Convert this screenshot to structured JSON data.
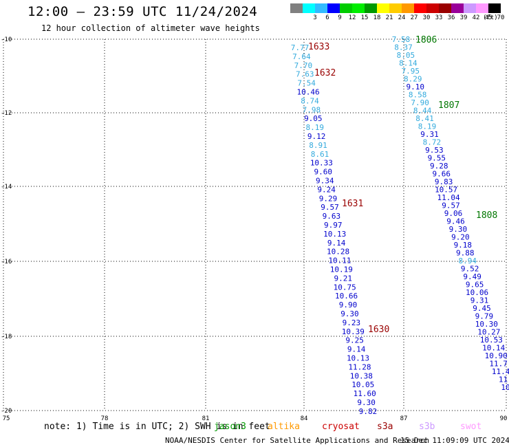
{
  "header": {
    "title": "12:00 — 23:59 UTC 11/24/2024",
    "subtitle": "12 hour collection of altimeter wave heights"
  },
  "legend": {
    "unit": "(ft)",
    "bins": [
      {
        "label": "",
        "color": "#808080"
      },
      {
        "label": "3",
        "color": "#00ffff"
      },
      {
        "label": "6",
        "color": "#33bbff"
      },
      {
        "label": "9",
        "color": "#0000ff"
      },
      {
        "label": "12",
        "color": "#00cc00"
      },
      {
        "label": "15",
        "color": "#00ee00"
      },
      {
        "label": "18",
        "color": "#009900"
      },
      {
        "label": "21",
        "color": "#ffff00"
      },
      {
        "label": "24",
        "color": "#ffcc00"
      },
      {
        "label": "27",
        "color": "#ff9900"
      },
      {
        "label": "30",
        "color": "#ff0000"
      },
      {
        "label": "33",
        "color": "#cc0000"
      },
      {
        "label": "36",
        "color": "#990000"
      },
      {
        "label": "39",
        "color": "#990099"
      },
      {
        "label": "42",
        "color": "#cc99ff"
      },
      {
        "label": "45",
        "color": "#ff99ff"
      },
      {
        "label": "70",
        "color": "#000000"
      }
    ]
  },
  "map": {
    "lon_ticks": [
      "75",
      "78",
      "81",
      "84",
      "87",
      "90"
    ],
    "lat_ticks": [
      "-10",
      "-12",
      "-14",
      "-16",
      "-18",
      "-20"
    ]
  },
  "tracks": [
    {
      "time_labels": [
        {
          "text": "1633",
          "color": "#990000"
        },
        {
          "text": "1632",
          "color": "#990000"
        },
        {
          "text": "1631",
          "color": "#990000"
        },
        {
          "text": "1630",
          "color": "#990000"
        }
      ],
      "values": [
        {
          "text": "7.77",
          "color": "#33aadd"
        },
        {
          "text": "7.64",
          "color": "#33aadd"
        },
        {
          "text": "7.70",
          "color": "#33aadd"
        },
        {
          "text": "7.63",
          "color": "#33aadd"
        },
        {
          "text": "7.54",
          "color": "#33aadd"
        },
        {
          "text": "10.46",
          "color": "#0000cc"
        },
        {
          "text": "8.74",
          "color": "#33aadd"
        },
        {
          "text": "7.98",
          "color": "#33aadd"
        },
        {
          "text": "9.05",
          "color": "#0000cc"
        },
        {
          "text": "8.19",
          "color": "#33aadd"
        },
        {
          "text": "9.12",
          "color": "#0000cc"
        },
        {
          "text": "8.91",
          "color": "#33aadd"
        },
        {
          "text": "8.61",
          "color": "#33aadd"
        },
        {
          "text": "10.33",
          "color": "#0000cc"
        },
        {
          "text": "9.60",
          "color": "#0000cc"
        },
        {
          "text": "9.34",
          "color": "#0000cc"
        },
        {
          "text": "9.24",
          "color": "#0000cc"
        },
        {
          "text": "9.29",
          "color": "#0000cc"
        },
        {
          "text": "9.57",
          "color": "#0000cc"
        },
        {
          "text": "9.63",
          "color": "#0000cc"
        },
        {
          "text": "9.97",
          "color": "#0000cc"
        },
        {
          "text": "10.13",
          "color": "#0000cc"
        },
        {
          "text": "9.14",
          "color": "#0000cc"
        },
        {
          "text": "10.28",
          "color": "#0000cc"
        },
        {
          "text": "10.11",
          "color": "#0000cc"
        },
        {
          "text": "10.19",
          "color": "#0000cc"
        },
        {
          "text": "9.21",
          "color": "#0000cc"
        },
        {
          "text": "10.75",
          "color": "#0000cc"
        },
        {
          "text": "10.66",
          "color": "#0000cc"
        },
        {
          "text": "9.90",
          "color": "#0000cc"
        },
        {
          "text": "9.30",
          "color": "#0000cc"
        },
        {
          "text": "9.23",
          "color": "#0000cc"
        },
        {
          "text": "10.39",
          "color": "#0000cc"
        },
        {
          "text": "9.25",
          "color": "#0000cc"
        },
        {
          "text": "9.14",
          "color": "#0000cc"
        },
        {
          "text": "10.13",
          "color": "#0000cc"
        },
        {
          "text": "11.28",
          "color": "#0000cc"
        },
        {
          "text": "10.38",
          "color": "#0000cc"
        },
        {
          "text": "10.05",
          "color": "#0000cc"
        },
        {
          "text": "11.60",
          "color": "#0000cc"
        },
        {
          "text": "9.30",
          "color": "#0000cc"
        },
        {
          "text": "9.82",
          "color": "#0000cc"
        }
      ]
    },
    {
      "time_labels": [
        {
          "text": "1806",
          "color": "#007700"
        },
        {
          "text": "1807",
          "color": "#007700"
        },
        {
          "text": "1808",
          "color": "#007700"
        }
      ],
      "values": [
        {
          "text": "7.58",
          "color": "#33aadd"
        },
        {
          "text": "8.37",
          "color": "#33aadd"
        },
        {
          "text": "8.05",
          "color": "#33aadd"
        },
        {
          "text": "8.14",
          "color": "#33aadd"
        },
        {
          "text": "7.95",
          "color": "#33aadd"
        },
        {
          "text": "8.29",
          "color": "#33aadd"
        },
        {
          "text": "9.10",
          "color": "#0000cc"
        },
        {
          "text": "8.58",
          "color": "#33aadd"
        },
        {
          "text": "7.90",
          "color": "#33aadd"
        },
        {
          "text": "8.44",
          "color": "#33aadd"
        },
        {
          "text": "8.41",
          "color": "#33aadd"
        },
        {
          "text": "8.19",
          "color": "#33aadd"
        },
        {
          "text": "9.31",
          "color": "#0000cc"
        },
        {
          "text": "8.72",
          "color": "#33aadd"
        },
        {
          "text": "9.53",
          "color": "#0000cc"
        },
        {
          "text": "9.55",
          "color": "#0000cc"
        },
        {
          "text": "9.28",
          "color": "#0000cc"
        },
        {
          "text": "9.66",
          "color": "#0000cc"
        },
        {
          "text": "9.83",
          "color": "#0000cc"
        },
        {
          "text": "10.57",
          "color": "#0000cc"
        },
        {
          "text": "11.04",
          "color": "#0000cc"
        },
        {
          "text": "9.57",
          "color": "#0000cc"
        },
        {
          "text": "9.06",
          "color": "#0000cc"
        },
        {
          "text": "9.46",
          "color": "#0000cc"
        },
        {
          "text": "9.30",
          "color": "#0000cc"
        },
        {
          "text": "9.20",
          "color": "#0000cc"
        },
        {
          "text": "9.18",
          "color": "#0000cc"
        },
        {
          "text": "9.88",
          "color": "#0000cc"
        },
        {
          "text": "8.94",
          "color": "#33aadd"
        },
        {
          "text": "9.52",
          "color": "#0000cc"
        },
        {
          "text": "9.49",
          "color": "#0000cc"
        },
        {
          "text": "9.65",
          "color": "#0000cc"
        },
        {
          "text": "10.06",
          "color": "#0000cc"
        },
        {
          "text": "9.31",
          "color": "#0000cc"
        },
        {
          "text": "9.45",
          "color": "#0000cc"
        },
        {
          "text": "9.79",
          "color": "#0000cc"
        },
        {
          "text": "10.30",
          "color": "#0000cc"
        },
        {
          "text": "10.27",
          "color": "#0000cc"
        },
        {
          "text": "10.53",
          "color": "#0000cc"
        },
        {
          "text": "10.14",
          "color": "#0000cc"
        },
        {
          "text": "10.90",
          "color": "#0000cc"
        },
        {
          "text": "11.7",
          "color": "#0000cc"
        },
        {
          "text": "11.4",
          "color": "#0000cc"
        },
        {
          "text": "11",
          "color": "#0000cc"
        },
        {
          "text": "10",
          "color": "#0000cc"
        }
      ]
    }
  ],
  "footer": {
    "note": "note: 1) Time is in UTC; 2) SWH is in feet",
    "satellites": [
      {
        "name": "jason3",
        "color": "#009900"
      },
      {
        "name": "altika",
        "color": "#ff9900"
      },
      {
        "name": "cryosat",
        "color": "#cc0000"
      },
      {
        "name": "s3a",
        "color": "#990000"
      },
      {
        "name": "s3b",
        "color": "#cc99ff"
      },
      {
        "name": "swot",
        "color": "#ff99ff"
      }
    ],
    "credit": "NOAA/NESDIS Center for Satellite Applications and Research",
    "timestamp": "15 Dec 11:09:09 UTC 2024"
  }
}
